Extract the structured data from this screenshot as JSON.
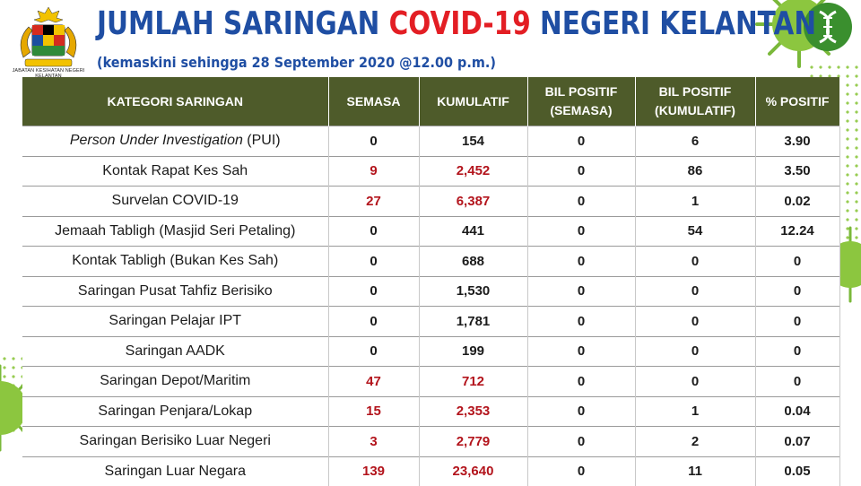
{
  "header": {
    "logo_caption": "JABATAN KESIHATAN NEGERI KELANTAN",
    "title_part1": "JUMLAH SARINGAN ",
    "title_part2": "COVID-19",
    "title_part3": " NEGERI KELANTAN",
    "subtitle": "(kemaskini sehingga 28 September 2020 @12.00 p.m.)"
  },
  "colors": {
    "title_blue": "#1f4ea3",
    "title_red": "#e31e24",
    "header_bg": "#4e5b2a",
    "value_red": "#b3141c",
    "accent_green": "#8cc63f"
  },
  "icons": [
    "malaysia-coat-of-arms-logo",
    "virus-icon",
    "dna-icon"
  ],
  "table": {
    "headers": [
      "KATEGORI SARINGAN",
      "SEMASA",
      "KUMULATIF",
      "BIL POSITIF (SEMASA)",
      "BIL POSITIF (KUMULATIF)",
      "% POSITIF"
    ],
    "rows": [
      {
        "cat_italic": "Person Under Investigation",
        "cat": " (PUI)",
        "semasa": "0",
        "kumulatif": "154",
        "pos_semasa": "0",
        "pos_kumulatif": "6",
        "pct": "3.90",
        "highlight": false
      },
      {
        "cat_italic": "",
        "cat": "Kontak Rapat Kes Sah",
        "semasa": "9",
        "kumulatif": "2,452",
        "pos_semasa": "0",
        "pos_kumulatif": "86",
        "pct": "3.50",
        "highlight": true
      },
      {
        "cat_italic": "",
        "cat": "Survelan COVID-19",
        "semasa": "27",
        "kumulatif": "6,387",
        "pos_semasa": "0",
        "pos_kumulatif": "1",
        "pct": "0.02",
        "highlight": true
      },
      {
        "cat_italic": "",
        "cat": "Jemaah Tabligh (Masjid Seri Petaling)",
        "semasa": "0",
        "kumulatif": "441",
        "pos_semasa": "0",
        "pos_kumulatif": "54",
        "pct": "12.24",
        "highlight": false
      },
      {
        "cat_italic": "",
        "cat": "Kontak Tabligh (Bukan Kes Sah)",
        "semasa": "0",
        "kumulatif": "688",
        "pos_semasa": "0",
        "pos_kumulatif": "0",
        "pct": "0",
        "highlight": false
      },
      {
        "cat_italic": "",
        "cat": "Saringan Pusat Tahfiz Berisiko",
        "semasa": "0",
        "kumulatif": "1,530",
        "pos_semasa": "0",
        "pos_kumulatif": "0",
        "pct": "0",
        "highlight": false
      },
      {
        "cat_italic": "",
        "cat": "Saringan Pelajar IPT",
        "semasa": "0",
        "kumulatif": "1,781",
        "pos_semasa": "0",
        "pos_kumulatif": "0",
        "pct": "0",
        "highlight": false
      },
      {
        "cat_italic": "",
        "cat": "Saringan AADK",
        "semasa": "0",
        "kumulatif": "199",
        "pos_semasa": "0",
        "pos_kumulatif": "0",
        "pct": "0",
        "highlight": false
      },
      {
        "cat_italic": "",
        "cat": "Saringan Depot/Maritim",
        "semasa": "47",
        "kumulatif": "712",
        "pos_semasa": "0",
        "pos_kumulatif": "0",
        "pct": "0",
        "highlight": true
      },
      {
        "cat_italic": "",
        "cat": "Saringan Penjara/Lokap",
        "semasa": "15",
        "kumulatif": "2,353",
        "pos_semasa": "0",
        "pos_kumulatif": "1",
        "pct": "0.04",
        "highlight": true
      },
      {
        "cat_italic": "",
        "cat": "Saringan Berisiko Luar Negeri",
        "semasa": "3",
        "kumulatif": "2,779",
        "pos_semasa": "0",
        "pos_kumulatif": "2",
        "pct": "0.07",
        "highlight": true
      },
      {
        "cat_italic": "",
        "cat": "Saringan Luar Negara",
        "semasa": "139",
        "kumulatif": "23,640",
        "pos_semasa": "0",
        "pos_kumulatif": "11",
        "pct": "0.05",
        "highlight": true
      }
    ]
  }
}
